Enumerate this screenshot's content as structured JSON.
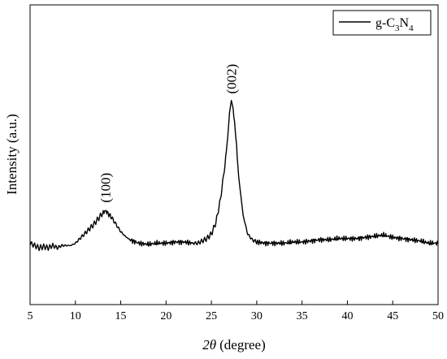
{
  "chart_data": {
    "type": "line",
    "xlabel_symbol": "2θ",
    "xlabel_unit": "(degree)",
    "ylabel": "Intensity (a.u.)",
    "xlim": [
      5,
      50
    ],
    "ylim": [
      0,
      1
    ],
    "x_ticks": [
      5,
      10,
      15,
      20,
      25,
      30,
      35,
      40,
      45,
      50
    ],
    "y_ticks_shown": false,
    "grid": false,
    "legend": {
      "placement": "top-right",
      "label_base": "g-C",
      "sub1": "3",
      "mid": "N",
      "sub2": "4"
    },
    "series": [
      {
        "name": "g-C3N4",
        "color": "#000000",
        "points": [
          [
            5.0,
            0.16
          ],
          [
            5.5,
            0.15
          ],
          [
            6.0,
            0.14
          ],
          [
            6.5,
            0.145
          ],
          [
            7.0,
            0.14
          ],
          [
            7.5,
            0.15
          ],
          [
            8.0,
            0.14
          ],
          [
            8.5,
            0.15
          ],
          [
            9.0,
            0.15
          ],
          [
            9.5,
            0.15
          ],
          [
            10.0,
            0.16
          ],
          [
            10.5,
            0.18
          ],
          [
            11.0,
            0.2
          ],
          [
            11.5,
            0.22
          ],
          [
            12.0,
            0.24
          ],
          [
            12.5,
            0.265
          ],
          [
            13.0,
            0.29
          ],
          [
            13.3,
            0.3
          ],
          [
            13.6,
            0.29
          ],
          [
            14.0,
            0.27
          ],
          [
            14.5,
            0.24
          ],
          [
            15.0,
            0.21
          ],
          [
            15.5,
            0.19
          ],
          [
            16.0,
            0.175
          ],
          [
            17.0,
            0.16
          ],
          [
            18.0,
            0.155
          ],
          [
            19.0,
            0.16
          ],
          [
            20.0,
            0.16
          ],
          [
            21.0,
            0.165
          ],
          [
            22.0,
            0.165
          ],
          [
            23.0,
            0.16
          ],
          [
            23.5,
            0.16
          ],
          [
            24.0,
            0.17
          ],
          [
            24.5,
            0.18
          ],
          [
            25.0,
            0.2
          ],
          [
            25.5,
            0.25
          ],
          [
            26.0,
            0.35
          ],
          [
            26.5,
            0.5
          ],
          [
            26.8,
            0.62
          ],
          [
            27.0,
            0.72
          ],
          [
            27.2,
            0.77
          ],
          [
            27.4,
            0.74
          ],
          [
            27.7,
            0.62
          ],
          [
            28.0,
            0.45
          ],
          [
            28.5,
            0.28
          ],
          [
            29.0,
            0.2
          ],
          [
            29.5,
            0.175
          ],
          [
            30.0,
            0.165
          ],
          [
            31.0,
            0.16
          ],
          [
            32.0,
            0.16
          ],
          [
            33.0,
            0.16
          ],
          [
            34.0,
            0.165
          ],
          [
            35.0,
            0.165
          ],
          [
            36.0,
            0.17
          ],
          [
            37.0,
            0.175
          ],
          [
            38.0,
            0.175
          ],
          [
            39.0,
            0.18
          ],
          [
            40.0,
            0.18
          ],
          [
            41.0,
            0.18
          ],
          [
            42.0,
            0.185
          ],
          [
            43.0,
            0.19
          ],
          [
            44.0,
            0.195
          ],
          [
            45.0,
            0.185
          ],
          [
            46.0,
            0.18
          ],
          [
            47.0,
            0.175
          ],
          [
            48.0,
            0.17
          ],
          [
            49.0,
            0.16
          ],
          [
            50.0,
            0.16
          ]
        ]
      }
    ],
    "annotations": [
      {
        "text": "(100)",
        "x": 13.3,
        "y": 0.3
      },
      {
        "text": "(002)",
        "x": 27.2,
        "y": 0.77
      }
    ]
  }
}
